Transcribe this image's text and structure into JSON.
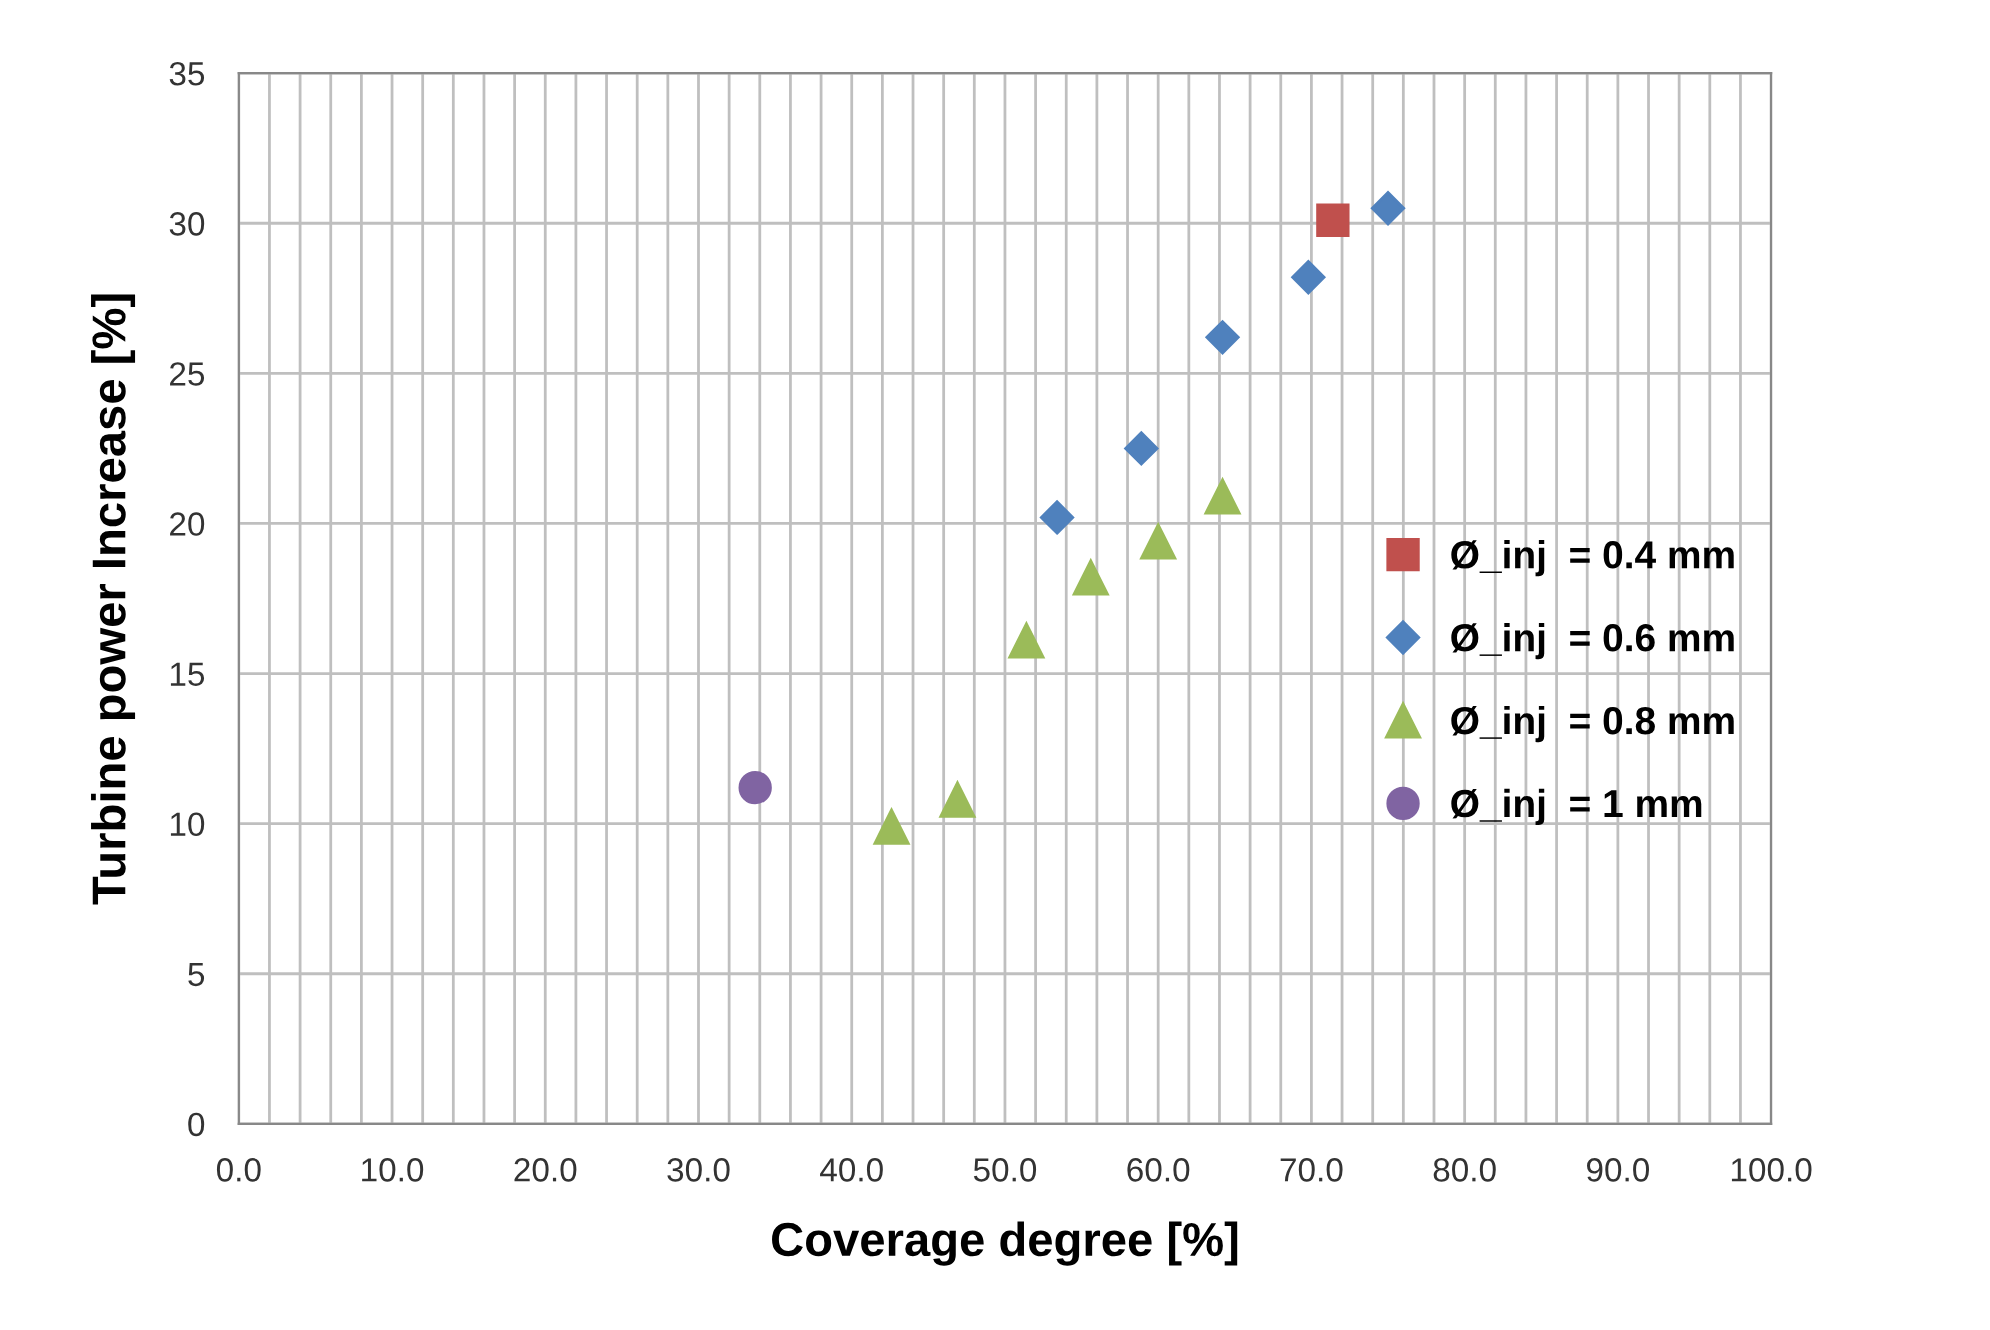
{
  "chart_data": {
    "type": "scatter",
    "xlabel": "Coverage degree [%]",
    "ylabel": "Turbine power Increase [%]",
    "xlim": [
      0,
      100
    ],
    "ylim": [
      0,
      35
    ],
    "xticks": [
      {
        "value": 0,
        "label": "0.0"
      },
      {
        "value": 2,
        "label": null
      },
      {
        "value": 4,
        "label": null
      },
      {
        "value": 6,
        "label": null
      },
      {
        "value": 8,
        "label": null
      },
      {
        "value": 10,
        "label": "10.0"
      },
      {
        "value": 12,
        "label": null
      },
      {
        "value": 14,
        "label": null
      },
      {
        "value": 16,
        "label": null
      },
      {
        "value": 18,
        "label": null
      },
      {
        "value": 20,
        "label": "20.0"
      },
      {
        "value": 22,
        "label": null
      },
      {
        "value": 24,
        "label": null
      },
      {
        "value": 26,
        "label": null
      },
      {
        "value": 28,
        "label": null
      },
      {
        "value": 30,
        "label": "30.0"
      },
      {
        "value": 32,
        "label": null
      },
      {
        "value": 34,
        "label": null
      },
      {
        "value": 36,
        "label": null
      },
      {
        "value": 38,
        "label": null
      },
      {
        "value": 40,
        "label": "40.0"
      },
      {
        "value": 42,
        "label": null
      },
      {
        "value": 44,
        "label": null
      },
      {
        "value": 46,
        "label": null
      },
      {
        "value": 48,
        "label": null
      },
      {
        "value": 50,
        "label": "50.0"
      },
      {
        "value": 52,
        "label": null
      },
      {
        "value": 54,
        "label": null
      },
      {
        "value": 56,
        "label": null
      },
      {
        "value": 58,
        "label": null
      },
      {
        "value": 60,
        "label": "60.0"
      },
      {
        "value": 62,
        "label": null
      },
      {
        "value": 64,
        "label": null
      },
      {
        "value": 66,
        "label": null
      },
      {
        "value": 68,
        "label": null
      },
      {
        "value": 70,
        "label": "70.0"
      },
      {
        "value": 72,
        "label": null
      },
      {
        "value": 74,
        "label": null
      },
      {
        "value": 76,
        "label": null
      },
      {
        "value": 78,
        "label": null
      },
      {
        "value": 80,
        "label": "80.0"
      },
      {
        "value": 82,
        "label": null
      },
      {
        "value": 84,
        "label": null
      },
      {
        "value": 86,
        "label": null
      },
      {
        "value": 88,
        "label": null
      },
      {
        "value": 90,
        "label": "90.0"
      },
      {
        "value": 92,
        "label": null
      },
      {
        "value": 94,
        "label": null
      },
      {
        "value": 96,
        "label": null
      },
      {
        "value": 98,
        "label": null
      },
      {
        "value": 100,
        "label": "100.0"
      }
    ],
    "yticks": [
      0,
      5,
      10,
      15,
      20,
      25,
      30,
      35
    ],
    "grid": true,
    "legend": "right",
    "series": [
      {
        "name": "Ø_inj  = 0.4 mm",
        "color": "#c0504d",
        "marker": "square",
        "x": [
          71.4
        ],
        "values": [
          30.1
        ]
      },
      {
        "name": "Ø_inj  = 0.6 mm",
        "color": "#4f81bd",
        "marker": "diamond",
        "x": [
          53.4,
          58.9,
          64.2,
          69.8,
          75.0
        ],
        "values": [
          20.2,
          22.5,
          26.2,
          28.2,
          30.5
        ]
      },
      {
        "name": "Ø_inj  = 0.8 mm",
        "color": "#9bbb59",
        "marker": "triangle",
        "x": [
          42.6,
          46.9,
          51.4,
          55.6,
          60.0,
          64.2
        ],
        "values": [
          9.9,
          10.8,
          16.1,
          18.2,
          19.4,
          20.9
        ]
      },
      {
        "name": "Ø_inj  = 1 mm",
        "color": "#8064a2",
        "marker": "circle",
        "x": [
          33.7
        ],
        "values": [
          11.2
        ]
      }
    ]
  }
}
